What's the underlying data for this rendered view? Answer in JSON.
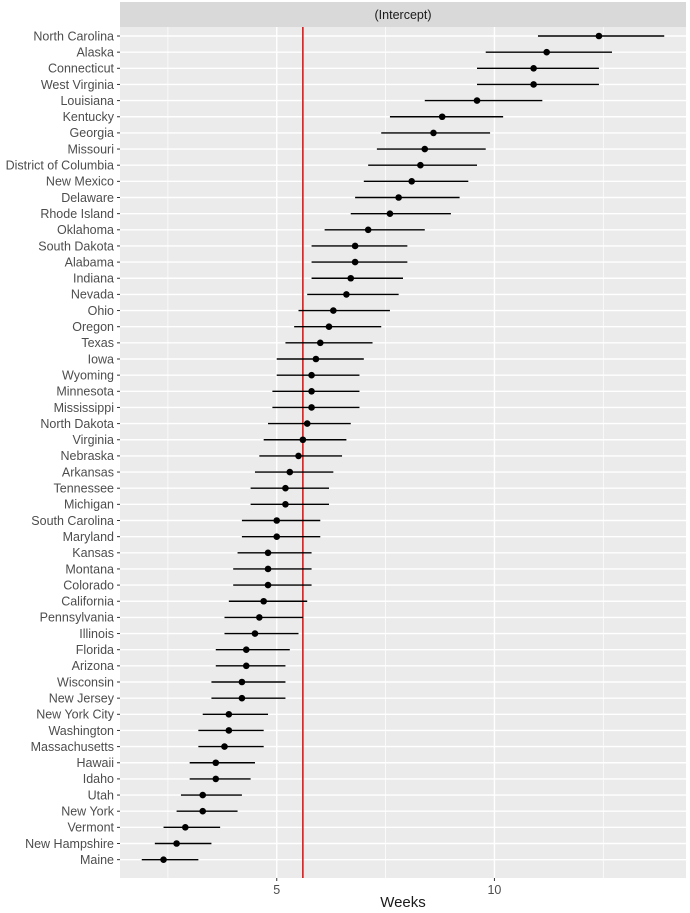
{
  "chart_data": {
    "type": "scatter",
    "facet_label": "(Intercept)",
    "xlabel": "Weeks",
    "ylabel": "",
    "xlim": [
      1.4,
      14.4
    ],
    "x_ticks": [
      5,
      10
    ],
    "x_tick_labels": [
      "5",
      "10"
    ],
    "reference_line": {
      "x": 5.6,
      "color": "#cc2222"
    },
    "grid": true,
    "colors": {
      "panel": "#ebebeb",
      "grid": "#ffffff",
      "strip": "#d9d9d9",
      "point": "#000000",
      "interval": "#000000"
    },
    "states": [
      {
        "name": "North Carolina",
        "estimate": 12.4,
        "lower": 11.0,
        "upper": 13.9
      },
      {
        "name": "Alaska",
        "estimate": 11.2,
        "lower": 9.8,
        "upper": 12.7
      },
      {
        "name": "Connecticut",
        "estimate": 10.9,
        "lower": 9.6,
        "upper": 12.4
      },
      {
        "name": "West Virginia",
        "estimate": 10.9,
        "lower": 9.6,
        "upper": 12.4
      },
      {
        "name": "Louisiana",
        "estimate": 9.6,
        "lower": 8.4,
        "upper": 11.1
      },
      {
        "name": "Kentucky",
        "estimate": 8.8,
        "lower": 7.6,
        "upper": 10.2
      },
      {
        "name": "Georgia",
        "estimate": 8.6,
        "lower": 7.4,
        "upper": 9.9
      },
      {
        "name": "Missouri",
        "estimate": 8.4,
        "lower": 7.3,
        "upper": 9.8
      },
      {
        "name": "District of Columbia",
        "estimate": 8.3,
        "lower": 7.1,
        "upper": 9.6
      },
      {
        "name": "New Mexico",
        "estimate": 8.1,
        "lower": 7.0,
        "upper": 9.4
      },
      {
        "name": "Delaware",
        "estimate": 7.8,
        "lower": 6.8,
        "upper": 9.2
      },
      {
        "name": "Rhode Island",
        "estimate": 7.6,
        "lower": 6.7,
        "upper": 9.0
      },
      {
        "name": "Oklahoma",
        "estimate": 7.1,
        "lower": 6.1,
        "upper": 8.4
      },
      {
        "name": "South Dakota",
        "estimate": 6.8,
        "lower": 5.8,
        "upper": 8.0
      },
      {
        "name": "Alabama",
        "estimate": 6.8,
        "lower": 5.8,
        "upper": 8.0
      },
      {
        "name": "Indiana",
        "estimate": 6.7,
        "lower": 5.8,
        "upper": 7.9
      },
      {
        "name": "Nevada",
        "estimate": 6.6,
        "lower": 5.7,
        "upper": 7.8
      },
      {
        "name": "Ohio",
        "estimate": 6.3,
        "lower": 5.5,
        "upper": 7.6
      },
      {
        "name": "Oregon",
        "estimate": 6.2,
        "lower": 5.4,
        "upper": 7.4
      },
      {
        "name": "Texas",
        "estimate": 6.0,
        "lower": 5.2,
        "upper": 7.2
      },
      {
        "name": "Iowa",
        "estimate": 5.9,
        "lower": 5.0,
        "upper": 7.0
      },
      {
        "name": "Wyoming",
        "estimate": 5.8,
        "lower": 5.0,
        "upper": 6.9
      },
      {
        "name": "Minnesota",
        "estimate": 5.8,
        "lower": 4.9,
        "upper": 6.9
      },
      {
        "name": "Mississippi",
        "estimate": 5.8,
        "lower": 4.9,
        "upper": 6.9
      },
      {
        "name": "North Dakota",
        "estimate": 5.7,
        "lower": 4.8,
        "upper": 6.7
      },
      {
        "name": "Virginia",
        "estimate": 5.6,
        "lower": 4.7,
        "upper": 6.6
      },
      {
        "name": "Nebraska",
        "estimate": 5.5,
        "lower": 4.6,
        "upper": 6.5
      },
      {
        "name": "Arkansas",
        "estimate": 5.3,
        "lower": 4.5,
        "upper": 6.3
      },
      {
        "name": "Tennessee",
        "estimate": 5.2,
        "lower": 4.4,
        "upper": 6.2
      },
      {
        "name": "Michigan",
        "estimate": 5.2,
        "lower": 4.4,
        "upper": 6.2
      },
      {
        "name": "South Carolina",
        "estimate": 5.0,
        "lower": 4.2,
        "upper": 6.0
      },
      {
        "name": "Maryland",
        "estimate": 5.0,
        "lower": 4.2,
        "upper": 6.0
      },
      {
        "name": "Kansas",
        "estimate": 4.8,
        "lower": 4.1,
        "upper": 5.8
      },
      {
        "name": "Montana",
        "estimate": 4.8,
        "lower": 4.0,
        "upper": 5.8
      },
      {
        "name": "Colorado",
        "estimate": 4.8,
        "lower": 4.0,
        "upper": 5.8
      },
      {
        "name": "California",
        "estimate": 4.7,
        "lower": 3.9,
        "upper": 5.7
      },
      {
        "name": "Pennsylvania",
        "estimate": 4.6,
        "lower": 3.8,
        "upper": 5.6
      },
      {
        "name": "Illinois",
        "estimate": 4.5,
        "lower": 3.8,
        "upper": 5.5
      },
      {
        "name": "Florida",
        "estimate": 4.3,
        "lower": 3.6,
        "upper": 5.3
      },
      {
        "name": "Arizona",
        "estimate": 4.3,
        "lower": 3.6,
        "upper": 5.2
      },
      {
        "name": "Wisconsin",
        "estimate": 4.2,
        "lower": 3.5,
        "upper": 5.2
      },
      {
        "name": "New Jersey",
        "estimate": 4.2,
        "lower": 3.5,
        "upper": 5.2
      },
      {
        "name": "New York City",
        "estimate": 3.9,
        "lower": 3.3,
        "upper": 4.8
      },
      {
        "name": "Washington",
        "estimate": 3.9,
        "lower": 3.2,
        "upper": 4.7
      },
      {
        "name": "Massachusetts",
        "estimate": 3.8,
        "lower": 3.2,
        "upper": 4.7
      },
      {
        "name": "Hawaii",
        "estimate": 3.6,
        "lower": 3.0,
        "upper": 4.5
      },
      {
        "name": "Idaho",
        "estimate": 3.6,
        "lower": 3.0,
        "upper": 4.4
      },
      {
        "name": "Utah",
        "estimate": 3.3,
        "lower": 2.8,
        "upper": 4.2
      },
      {
        "name": "New York",
        "estimate": 3.3,
        "lower": 2.7,
        "upper": 4.1
      },
      {
        "name": "Vermont",
        "estimate": 2.9,
        "lower": 2.4,
        "upper": 3.7
      },
      {
        "name": "New Hampshire",
        "estimate": 2.7,
        "lower": 2.2,
        "upper": 3.5
      },
      {
        "name": "Maine",
        "estimate": 2.4,
        "lower": 1.9,
        "upper": 3.2
      }
    ]
  }
}
